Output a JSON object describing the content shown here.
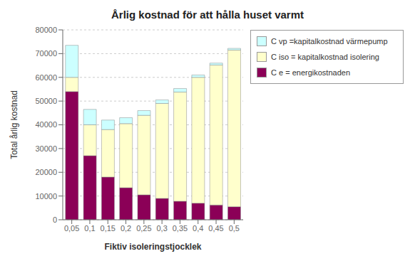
{
  "chart_data": {
    "type": "bar",
    "stacked": true,
    "title": "Årlig kostnad för att hålla huset varmt",
    "xlabel": "Fiktiv isoleringstjocklek",
    "ylabel": "Total årlig kostnad",
    "categories": [
      "0,05",
      "0,1",
      "0,15",
      "0,2",
      "0,25",
      "0,3",
      "0,35",
      "0,4",
      "0,45",
      "0,5"
    ],
    "series": [
      {
        "name": "C e = energikostnaden",
        "color": "#8B0057",
        "values": [
          54000,
          27000,
          18000,
          13500,
          10500,
          9000,
          7800,
          7000,
          6200,
          5500
        ]
      },
      {
        "name": "C iso = kapitalkostnad isolering",
        "color": "#FFFFCC",
        "values": [
          6000,
          13000,
          20000,
          27000,
          33500,
          40000,
          46000,
          53000,
          59000,
          66000
        ]
      },
      {
        "name": "C vp =kapitalkostnad värmepump",
        "color": "#CCFFFF",
        "values": [
          13500,
          6500,
          4000,
          2500,
          2000,
          1500,
          1500,
          1000,
          800,
          700
        ]
      }
    ],
    "ylim": [
      0,
      80000
    ],
    "yticks": [
      0,
      10000,
      20000,
      30000,
      40000,
      50000,
      60000,
      70000,
      80000
    ],
    "grid": true,
    "legend": "right"
  }
}
